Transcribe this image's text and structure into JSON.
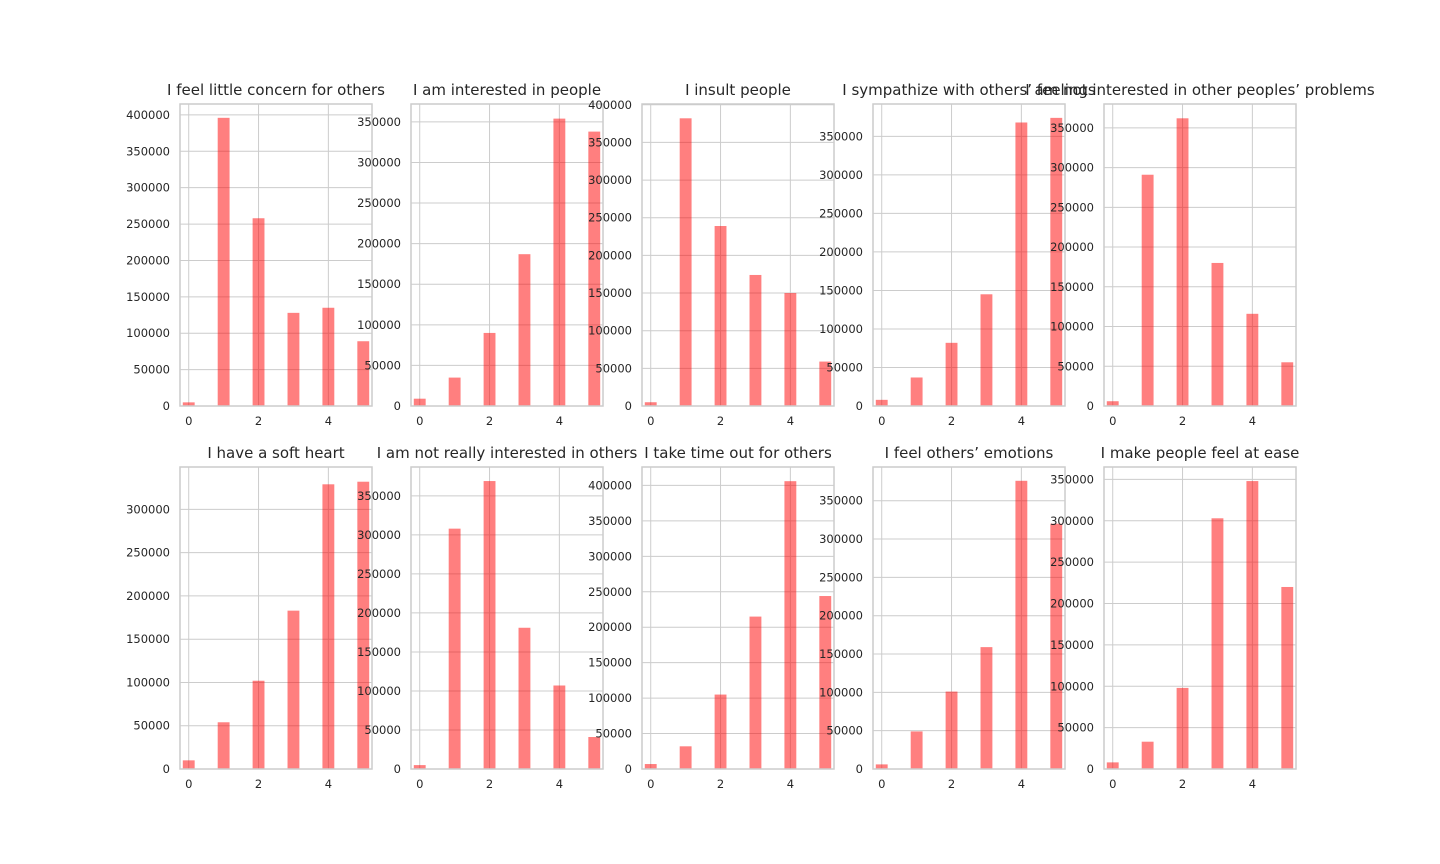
{
  "chart_data": [
    {
      "type": "bar",
      "title": "I feel little concern for others",
      "x": [
        0,
        1,
        2,
        3,
        4,
        5
      ],
      "values": [
        5000,
        396000,
        258000,
        128000,
        135000,
        89000
      ],
      "xlim": [
        -0.25,
        5.25
      ],
      "ylim": [
        0,
        415000
      ],
      "xticks": [
        0,
        2,
        4
      ],
      "yticks": [
        0,
        50000,
        100000,
        150000,
        200000,
        250000,
        300000,
        350000,
        400000
      ],
      "grid": true,
      "color": "#ff0000"
    },
    {
      "type": "bar",
      "title": "I am interested in people",
      "x": [
        0,
        1,
        2,
        3,
        4,
        5
      ],
      "values": [
        9000,
        35000,
        90000,
        187000,
        354000,
        338000
      ],
      "xlim": [
        -0.25,
        5.25
      ],
      "ylim": [
        0,
        372000
      ],
      "xticks": [
        0,
        2,
        4
      ],
      "yticks": [
        0,
        50000,
        100000,
        150000,
        200000,
        250000,
        300000,
        350000
      ],
      "grid": true,
      "color": "#ff0000"
    },
    {
      "type": "bar",
      "title": "I insult people",
      "x": [
        0,
        1,
        2,
        3,
        4,
        5
      ],
      "values": [
        5000,
        382000,
        239000,
        174000,
        150000,
        59000
      ],
      "xlim": [
        -0.25,
        5.25
      ],
      "ylim": [
        0,
        401000
      ],
      "xticks": [
        0,
        2,
        4
      ],
      "yticks": [
        0,
        50000,
        100000,
        150000,
        200000,
        250000,
        300000,
        350000,
        400000
      ],
      "grid": true,
      "color": "#ff0000"
    },
    {
      "type": "bar",
      "title": "I sympathize with others’ feelings",
      "x": [
        0,
        1,
        2,
        3,
        4,
        5
      ],
      "values": [
        8000,
        37000,
        82000,
        145000,
        368000,
        374000
      ],
      "xlim": [
        -0.25,
        5.25
      ],
      "ylim": [
        0,
        392000
      ],
      "xticks": [
        0,
        2,
        4
      ],
      "yticks": [
        0,
        50000,
        100000,
        150000,
        200000,
        250000,
        300000,
        350000
      ],
      "grid": true,
      "color": "#ff0000"
    },
    {
      "type": "bar",
      "title": "I am not interested in other peoples’ problems",
      "x": [
        0,
        1,
        2,
        3,
        4,
        5
      ],
      "values": [
        6000,
        291000,
        362000,
        180000,
        116000,
        55000
      ],
      "xlim": [
        -0.25,
        5.25
      ],
      "ylim": [
        0,
        380000
      ],
      "xticks": [
        0,
        2,
        4
      ],
      "yticks": [
        0,
        50000,
        100000,
        150000,
        200000,
        250000,
        300000,
        350000
      ],
      "grid": true,
      "color": "#ff0000"
    },
    {
      "type": "bar",
      "title": "I have a soft heart",
      "x": [
        0,
        1,
        2,
        3,
        4,
        5
      ],
      "values": [
        10000,
        54000,
        102000,
        183000,
        329000,
        332000
      ],
      "xlim": [
        -0.25,
        5.25
      ],
      "ylim": [
        0,
        349000
      ],
      "xticks": [
        0,
        2,
        4
      ],
      "yticks": [
        0,
        50000,
        100000,
        150000,
        200000,
        250000,
        300000
      ],
      "grid": true,
      "color": "#ff0000"
    },
    {
      "type": "bar",
      "title": "I am not really interested in others",
      "x": [
        0,
        1,
        2,
        3,
        4,
        5
      ],
      "values": [
        5000,
        308000,
        369000,
        181000,
        107000,
        41000
      ],
      "xlim": [
        -0.25,
        5.25
      ],
      "ylim": [
        0,
        387000
      ],
      "xticks": [
        0,
        2,
        4
      ],
      "yticks": [
        0,
        50000,
        100000,
        150000,
        200000,
        250000,
        300000,
        350000
      ],
      "grid": true,
      "color": "#ff0000"
    },
    {
      "type": "bar",
      "title": "I take time out for others",
      "x": [
        0,
        1,
        2,
        3,
        4,
        5
      ],
      "values": [
        7000,
        32000,
        105000,
        215000,
        406000,
        244000
      ],
      "xlim": [
        -0.25,
        5.25
      ],
      "ylim": [
        0,
        426000
      ],
      "xticks": [
        0,
        2,
        4
      ],
      "yticks": [
        0,
        50000,
        100000,
        150000,
        200000,
        250000,
        300000,
        350000,
        400000
      ],
      "grid": true,
      "color": "#ff0000"
    },
    {
      "type": "bar",
      "title": "I feel others’ emotions",
      "x": [
        0,
        1,
        2,
        3,
        4,
        5
      ],
      "values": [
        6000,
        49000,
        101000,
        159000,
        376000,
        320000
      ],
      "xlim": [
        -0.25,
        5.25
      ],
      "ylim": [
        0,
        394000
      ],
      "xticks": [
        0,
        2,
        4
      ],
      "yticks": [
        0,
        50000,
        100000,
        150000,
        200000,
        250000,
        300000,
        350000
      ],
      "grid": true,
      "color": "#ff0000"
    },
    {
      "type": "bar",
      "title": "I make people feel at ease",
      "x": [
        0,
        1,
        2,
        3,
        4,
        5
      ],
      "values": [
        8000,
        33000,
        98000,
        303000,
        348000,
        220000
      ],
      "xlim": [
        -0.25,
        5.25
      ],
      "ylim": [
        0,
        365000
      ],
      "xticks": [
        0,
        2,
        4
      ],
      "yticks": [
        0,
        50000,
        100000,
        150000,
        200000,
        250000,
        300000,
        350000
      ],
      "grid": true,
      "color": "#ff0000"
    }
  ]
}
